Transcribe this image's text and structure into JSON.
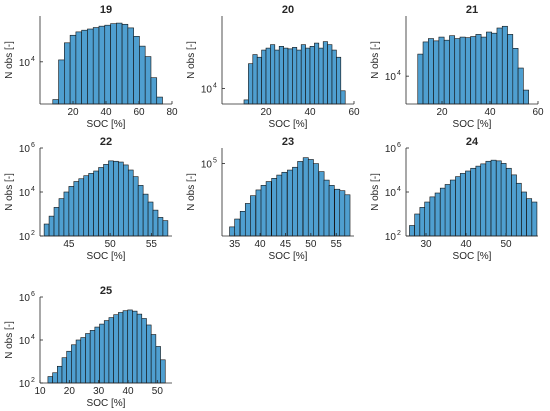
{
  "colors": {
    "bar_fill": "#4f9fd0",
    "bar_edge": "#111111",
    "axis": "#262626"
  },
  "chart_data": [
    {
      "type": "bar",
      "title": "19",
      "xlabel": "SOC [%]",
      "ylabel": "N obs [-]",
      "yscale": "log",
      "xlim": [
        0,
        80
      ],
      "ylim": [
        1200,
        100000
      ],
      "xticks": [
        20,
        40,
        60,
        80
      ],
      "xtick_labels": [
        "20",
        "40",
        "60",
        "80"
      ],
      "yticks": [
        10000
      ],
      "ytick_labels": [
        {
          "base": "10",
          "exp": "4"
        }
      ],
      "bin_width": 3.5,
      "x": [
        9.5,
        13,
        16.5,
        20,
        23.5,
        27,
        30.5,
        34,
        37.5,
        41,
        44.5,
        48,
        51.5,
        55,
        58.5,
        62,
        65.5,
        69,
        72.5
      ],
      "values": [
        1500,
        11000,
        26000,
        38000,
        45000,
        49000,
        52000,
        56000,
        60000,
        63000,
        68000,
        70000,
        66000,
        55000,
        36000,
        22000,
        13000,
        4500,
        1700
      ]
    },
    {
      "type": "bar",
      "title": "20",
      "xlabel": "SOC [%]",
      "ylabel": "N obs [-]",
      "yscale": "log",
      "xlim": [
        0,
        60
      ],
      "ylim": [
        5000,
        250000
      ],
      "xticks": [
        20,
        40,
        60
      ],
      "xtick_labels": [
        "20",
        "40",
        "60"
      ],
      "yticks": [
        10000
      ],
      "ytick_labels": [
        {
          "base": "10",
          "exp": "4"
        }
      ],
      "bin_width": 2,
      "x": [
        11,
        13,
        15,
        17,
        19,
        21,
        23,
        25,
        27,
        29,
        31,
        33,
        35,
        37,
        39,
        41,
        43,
        45,
        47,
        49,
        51,
        53,
        55
      ],
      "values": [
        6000,
        30000,
        45000,
        40000,
        55000,
        60000,
        70000,
        55000,
        65000,
        60000,
        58000,
        62000,
        55000,
        70000,
        60000,
        65000,
        75000,
        60000,
        80000,
        70000,
        55000,
        40000,
        9000
      ]
    },
    {
      "type": "bar",
      "title": "21",
      "xlabel": "SOC [%]",
      "ylabel": "N obs [-]",
      "yscale": "log",
      "xlim": [
        5,
        60
      ],
      "ylim": [
        2500,
        200000
      ],
      "xticks": [
        20,
        40,
        60
      ],
      "xtick_labels": [
        "20",
        "40",
        "60"
      ],
      "yticks": [
        10000
      ],
      "ytick_labels": [
        {
          "base": "10",
          "exp": "4"
        }
      ],
      "bin_width": 2.2,
      "x": [
        11,
        13.2,
        15.4,
        17.6,
        19.8,
        22,
        24.2,
        26.4,
        28.6,
        30.8,
        33,
        35.2,
        37.4,
        39.6,
        41.8,
        44,
        46.2,
        48.4,
        50.6,
        52.8,
        55
      ],
      "values": [
        30000,
        55000,
        65000,
        58000,
        70000,
        60000,
        75000,
        65000,
        70000,
        68000,
        72000,
        80000,
        70000,
        90000,
        85000,
        110000,
        120000,
        80000,
        40000,
        15000,
        5000
      ]
    },
    {
      "type": "bar",
      "title": "22",
      "xlabel": "SOC [%]",
      "ylabel": "N obs [-]",
      "yscale": "log",
      "xlim": [
        41.5,
        57.5
      ],
      "ylim": [
        100,
        1000000
      ],
      "xticks": [
        45,
        50,
        55
      ],
      "xtick_labels": [
        "45",
        "50",
        "55"
      ],
      "yticks": [
        100,
        10000,
        1000000
      ],
      "ytick_labels": [
        {
          "base": "10",
          "exp": "2"
        },
        {
          "base": "10",
          "exp": "4"
        },
        {
          "base": "10",
          "exp": "6"
        }
      ],
      "bin_width": 0.6,
      "x": [
        42.3,
        42.9,
        43.5,
        44.1,
        44.7,
        45.3,
        45.9,
        46.5,
        47.1,
        47.7,
        48.3,
        48.9,
        49.5,
        50.1,
        50.7,
        51.3,
        51.9,
        52.5,
        53.1,
        53.7,
        54.3,
        54.9,
        55.5,
        56.1,
        56.7
      ],
      "values": [
        350,
        800,
        2000,
        5000,
        10000,
        18000,
        30000,
        40000,
        55000,
        70000,
        90000,
        130000,
        180000,
        260000,
        250000,
        230000,
        170000,
        100000,
        50000,
        20000,
        8000,
        3500,
        1500,
        700,
        500
      ]
    },
    {
      "type": "bar",
      "title": "23",
      "xlabel": "SOC [%]",
      "ylabel": "N obs [-]",
      "yscale": "log",
      "xlim": [
        32.5,
        58.5
      ],
      "ylim": [
        4000,
        200000
      ],
      "xticks": [
        35,
        40,
        45,
        50,
        55
      ],
      "xtick_labels": [
        "35",
        "40",
        "45",
        "50",
        "55"
      ],
      "yticks": [
        100000
      ],
      "ytick_labels": [
        {
          "base": "10",
          "exp": "5"
        }
      ],
      "bin_width": 1.03,
      "x": [
        34.5,
        35.5,
        36.6,
        37.6,
        38.6,
        39.7,
        40.7,
        41.7,
        42.8,
        43.8,
        44.8,
        45.9,
        46.9,
        47.9,
        49,
        50,
        51,
        52.1,
        53.1,
        54.1,
        55.2,
        56.2,
        57.2
      ],
      "values": [
        6000,
        8500,
        12000,
        17000,
        24000,
        31000,
        38000,
        45000,
        52000,
        60000,
        68000,
        75000,
        85000,
        110000,
        130000,
        120000,
        100000,
        70000,
        48000,
        38000,
        32000,
        30000,
        25000
      ]
    },
    {
      "type": "bar",
      "title": "24",
      "xlabel": "SOC [%]",
      "ylabel": "N obs [-]",
      "yscale": "log",
      "xlim": [
        25,
        58
      ],
      "ylim": [
        100,
        1000000
      ],
      "xticks": [
        30,
        40,
        50
      ],
      "xtick_labels": [
        "30",
        "40",
        "50"
      ],
      "yticks": [
        100,
        10000,
        1000000
      ],
      "ytick_labels": [
        {
          "base": "10",
          "exp": "2"
        },
        {
          "base": "10",
          "exp": "4"
        },
        {
          "base": "10",
          "exp": "6"
        }
      ],
      "bin_width": 1.27,
      "x": [
        26.5,
        27.8,
        29.1,
        30.3,
        31.6,
        32.9,
        34.2,
        35.4,
        36.7,
        38,
        39.2,
        40.5,
        41.8,
        43.1,
        44.3,
        45.6,
        46.9,
        48.2,
        49.4,
        50.7,
        52,
        53.2,
        54.5,
        55.8,
        57.1
      ],
      "values": [
        300,
        1000,
        2000,
        3500,
        6000,
        9000,
        15000,
        22000,
        35000,
        50000,
        70000,
        90000,
        120000,
        150000,
        190000,
        250000,
        280000,
        260000,
        200000,
        120000,
        60000,
        25000,
        10000,
        5000,
        3500
      ]
    },
    {
      "type": "bar",
      "title": "25",
      "xlabel": "SOC [%]",
      "ylabel": "N obs [-]",
      "yscale": "log",
      "xlim": [
        10,
        55
      ],
      "ylim": [
        100,
        1000000
      ],
      "xticks": [
        10,
        20,
        30,
        40,
        50
      ],
      "xtick_labels": [
        "10",
        "20",
        "30",
        "40",
        "50"
      ],
      "yticks": [
        100,
        10000,
        1000000
      ],
      "ytick_labels": [
        {
          "base": "10",
          "exp": "2"
        },
        {
          "base": "10",
          "exp": "4"
        },
        {
          "base": "10",
          "exp": "6"
        }
      ],
      "bin_width": 1.6,
      "x": [
        13.5,
        15.1,
        16.7,
        18.3,
        19.9,
        21.5,
        23.1,
        24.7,
        26.3,
        27.9,
        29.5,
        31.1,
        32.7,
        34.3,
        35.9,
        37.5,
        39.1,
        40.7,
        42.3,
        43.9,
        45.5,
        47.1,
        48.7,
        50.3,
        51.9
      ],
      "values": [
        200,
        300,
        600,
        1500,
        3000,
        6000,
        10000,
        13000,
        20000,
        28000,
        40000,
        55000,
        80000,
        110000,
        150000,
        190000,
        230000,
        250000,
        220000,
        160000,
        100000,
        50000,
        18000,
        5000,
        1200
      ]
    }
  ]
}
